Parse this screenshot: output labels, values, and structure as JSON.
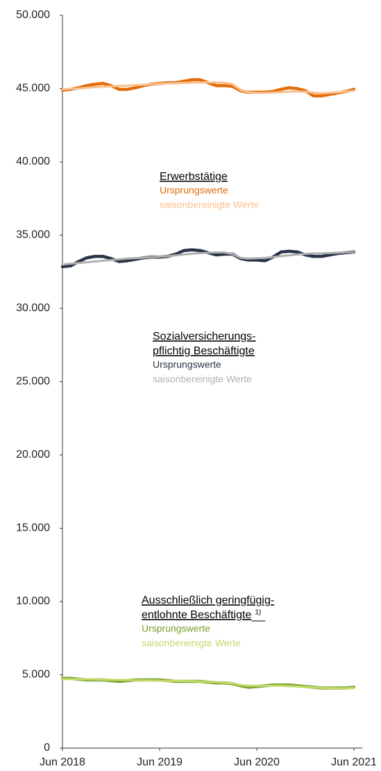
{
  "chart_data": {
    "type": "line",
    "categories": [
      "Jun 2018",
      null,
      null,
      null,
      null,
      null,
      null,
      null,
      null,
      null,
      null,
      null,
      "Jun 2019",
      null,
      null,
      null,
      null,
      null,
      null,
      null,
      null,
      null,
      null,
      null,
      "Jun 2020",
      null,
      null,
      null,
      null,
      null,
      null,
      null,
      null,
      null,
      null,
      null,
      "Jun 2021"
    ],
    "ylim": [
      0,
      50000
    ],
    "yticks": [
      0,
      {
        "value": 5000,
        "label": "5.000"
      },
      {
        "value": 10000,
        "label": "10.000"
      },
      {
        "value": 15000,
        "label": "15.000"
      },
      {
        "value": 20000,
        "label": "20.000"
      },
      {
        "value": 25000,
        "label": "25.000"
      },
      {
        "value": 30000,
        "label": "30.000"
      },
      {
        "value": 35000,
        "label": "35.000"
      },
      {
        "value": 40000,
        "label": "40.000"
      },
      {
        "value": 45000,
        "label": "45.000"
      },
      {
        "value": 50000,
        "label": "50.000"
      }
    ],
    "grid": false,
    "series": [
      {
        "name": "Ursprungswerte",
        "color": "#e46c0a",
        "values": [
          44900,
          44950,
          45050,
          45200,
          45300,
          45350,
          45200,
          44950,
          44950,
          45050,
          45200,
          45300,
          45350,
          45400,
          45400,
          45500,
          45600,
          45600,
          45400,
          45200,
          45200,
          45150,
          44850,
          44750,
          44750,
          44750,
          44800,
          44950,
          45050,
          45000,
          44850,
          44500,
          44500,
          44600,
          44700,
          44800,
          44950
        ]
      },
      {
        "name": "saisonbereinigte Werte",
        "color": "#fac090",
        "values": [
          44950,
          44980,
          45000,
          45050,
          45100,
          45120,
          45150,
          45180,
          45200,
          45230,
          45260,
          45300,
          45330,
          45350,
          45370,
          45390,
          45400,
          45410,
          45420,
          45420,
          45400,
          45300,
          44900,
          44750,
          44700,
          44700,
          44730,
          44760,
          44790,
          44800,
          44780,
          44720,
          44680,
          44700,
          44750,
          44800,
          44850
        ]
      },
      {
        "name": "Ursprungswerte",
        "color": "#2b3549",
        "values": [
          32850,
          32900,
          33200,
          33450,
          33550,
          33550,
          33400,
          33200,
          33250,
          33350,
          33450,
          33500,
          33500,
          33550,
          33700,
          33950,
          34000,
          33950,
          33800,
          33650,
          33700,
          33700,
          33400,
          33300,
          33300,
          33250,
          33500,
          33850,
          33900,
          33850,
          33650,
          33550,
          33550,
          33650,
          33750,
          33800,
          33850
        ]
      },
      {
        "name": "saisonbereinigte Werte",
        "color": "#b0b0b0",
        "values": [
          33000,
          33050,
          33100,
          33150,
          33200,
          33250,
          33300,
          33350,
          33400,
          33430,
          33460,
          33500,
          33530,
          33570,
          33620,
          33680,
          33730,
          33770,
          33800,
          33820,
          33820,
          33700,
          33450,
          33400,
          33420,
          33450,
          33500,
          33560,
          33620,
          33680,
          33720,
          33750,
          33760,
          33780,
          33800,
          33830,
          33850
        ]
      },
      {
        "name": "Ursprungswerte",
        "color": "#77a02c",
        "values": [
          4750,
          4750,
          4700,
          4650,
          4650,
          4650,
          4600,
          4550,
          4600,
          4650,
          4650,
          4650,
          4650,
          4600,
          4550,
          4550,
          4550,
          4550,
          4500,
          4450,
          4450,
          4400,
          4250,
          4150,
          4200,
          4250,
          4300,
          4300,
          4300,
          4250,
          4200,
          4150,
          4100,
          4100,
          4100,
          4100,
          4150
        ]
      },
      {
        "name": "saisonbereinigte Werte",
        "color": "#c3d96b",
        "values": [
          4700,
          4700,
          4700,
          4690,
          4680,
          4670,
          4660,
          4650,
          4640,
          4630,
          4620,
          4610,
          4600,
          4590,
          4580,
          4570,
          4560,
          4540,
          4520,
          4500,
          4470,
          4420,
          4300,
          4250,
          4250,
          4250,
          4250,
          4250,
          4230,
          4200,
          4170,
          4140,
          4110,
          4090,
          4080,
          4080,
          4100
        ]
      }
    ],
    "annotations": [
      {
        "text": [
          "Erwerbstätige"
        ]
      },
      {
        "text": [
          "Sozialversicherungs-",
          "pflichtig Beschäftigte"
        ]
      },
      {
        "text": [
          "Ausschließlich geringfügig-",
          "entlohnte Beschäftigte"
        ],
        "footnote": "1)"
      }
    ]
  }
}
